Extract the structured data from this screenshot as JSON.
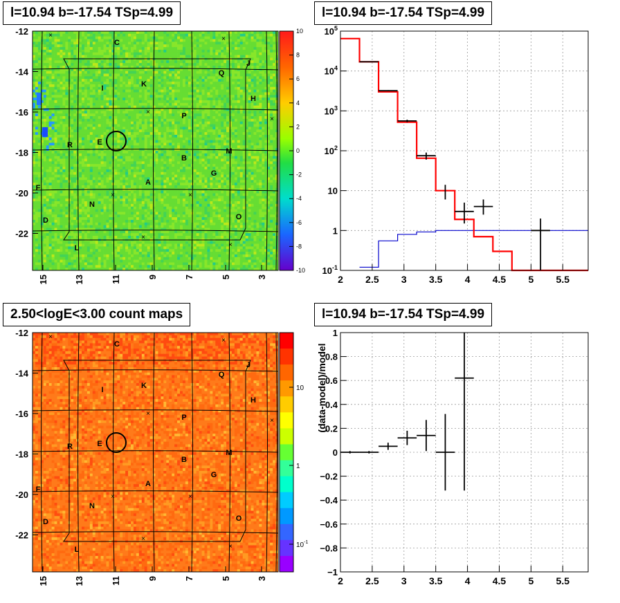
{
  "panels": {
    "top_left_title": "l=10.94 b=-17.54 TSp=4.99",
    "top_right_title": "l=10.94 b=-17.54 TSp=4.99",
    "bottom_left_title": "2.50<logE<3.00 count maps",
    "bottom_right_title": "l=10.94 b=-17.54 TSp=4.99"
  },
  "chart_data": [
    {
      "type": "heatmap",
      "name": "significance-map",
      "x_ticks": [
        "15",
        "13",
        "11",
        "9",
        "7",
        "5",
        "3"
      ],
      "y_ticks": [
        "-12",
        "-14",
        "-16",
        "-18",
        "-20",
        "-22"
      ],
      "colorbar_ticks": [
        "10",
        "8",
        "6",
        "4",
        "2",
        "0",
        "-2",
        "-4",
        "-6",
        "-8",
        "-10"
      ],
      "colorbar_range": [
        -10,
        10
      ],
      "source_labels": [
        "C",
        "J",
        "Q",
        "I",
        "K",
        "H",
        "P",
        "E",
        "R",
        "M",
        "B",
        "G",
        "A",
        "F",
        "N",
        "D",
        "O",
        "L"
      ],
      "source_circle": {
        "l": 10.94,
        "b": -17.54
      },
      "colors": {
        "dominant": "#66dd33"
      }
    },
    {
      "type": "line",
      "name": "spectrum",
      "x_ticks": [
        "2",
        "2.5",
        "3",
        "3.5",
        "4",
        "4.5",
        "5",
        "5.5"
      ],
      "xlim": [
        2.0,
        5.9
      ],
      "y_scale": "log",
      "ylim": [
        0.1,
        100000
      ],
      "y_ticks": [
        {
          "base": "10",
          "exp": "5",
          "value": 100000
        },
        {
          "base": "10",
          "exp": "4",
          "value": 10000
        },
        {
          "base": "10",
          "exp": "3",
          "value": 1000
        },
        {
          "base": "10",
          "exp": "2",
          "value": 100
        },
        {
          "base": "10",
          "exp": "",
          "value": 10
        },
        {
          "base": "1",
          "exp": "",
          "value": 1
        },
        {
          "base": "10",
          "exp": "-1",
          "value": 0.1
        }
      ],
      "model_total": {
        "color": "#ff0000",
        "bins": [
          [
            2.0,
            2.3,
            65000
          ],
          [
            2.3,
            2.6,
            17000
          ],
          [
            2.6,
            2.9,
            3000
          ],
          [
            2.9,
            3.2,
            520
          ],
          [
            3.2,
            3.5,
            65
          ],
          [
            3.5,
            3.8,
            10
          ],
          [
            3.8,
            4.1,
            1.9
          ],
          [
            4.1,
            4.4,
            0.7
          ],
          [
            4.4,
            4.7,
            0.3
          ],
          [
            4.7,
            5.0,
            0.1
          ],
          [
            5.0,
            5.9,
            0.1
          ]
        ]
      },
      "model_source": {
        "color": "#0000cc",
        "bins": [
          [
            2.3,
            2.6,
            0.12
          ],
          [
            2.6,
            2.9,
            0.55
          ],
          [
            2.9,
            3.2,
            0.8
          ],
          [
            3.2,
            3.5,
            0.92
          ],
          [
            3.5,
            3.8,
            1.0
          ],
          [
            3.8,
            5.9,
            1.0
          ]
        ]
      },
      "data_points": [
        {
          "x": 2.45,
          "xerr": 0.15,
          "y": 17000,
          "ylo": 16800,
          "yhi": 17200
        },
        {
          "x": 2.75,
          "xerr": 0.15,
          "y": 3200,
          "ylo": 3100,
          "yhi": 3300
        },
        {
          "x": 3.05,
          "xerr": 0.15,
          "y": 560,
          "ylo": 520,
          "yhi": 600
        },
        {
          "x": 3.35,
          "xerr": 0.15,
          "y": 75,
          "ylo": 60,
          "yhi": 90
        },
        {
          "x": 3.65,
          "xerr": 0.0,
          "y": 10,
          "ylo": 6,
          "yhi": 14
        },
        {
          "x": 3.95,
          "xerr": 0.15,
          "y": 3,
          "ylo": 1.5,
          "yhi": 5
        },
        {
          "x": 4.25,
          "xerr": 0.15,
          "y": 4,
          "ylo": 2.5,
          "yhi": 6
        },
        {
          "x": 5.15,
          "xerr": 0.15,
          "y": 1,
          "ylo": 0.1,
          "yhi": 2
        }
      ]
    },
    {
      "type": "heatmap",
      "name": "count-map",
      "x_ticks": [
        "15",
        "13",
        "11",
        "9",
        "7",
        "5",
        "3"
      ],
      "y_ticks": [
        "-12",
        "-14",
        "-16",
        "-18",
        "-20",
        "-22"
      ],
      "colorbar_scale": "log",
      "colorbar_ticks": [
        {
          "base": "10",
          "exp": "",
          "value": 10
        },
        {
          "base": "1",
          "exp": "",
          "value": 1
        },
        {
          "base": "10",
          "exp": "-1",
          "value": 0.1
        }
      ],
      "source_labels": [
        "C",
        "J",
        "Q",
        "I",
        "K",
        "H",
        "P",
        "E",
        "R",
        "M",
        "B",
        "G",
        "A",
        "F",
        "N",
        "D",
        "O",
        "L"
      ],
      "colors": {
        "dominant": "#ff6a1a"
      }
    },
    {
      "type": "scatter",
      "name": "residuals",
      "ylabel": "(data-model)/model",
      "x_ticks": [
        "2",
        "2.5",
        "3",
        "3.5",
        "4",
        "4.5",
        "5",
        "5.5"
      ],
      "y_ticks": [
        "1",
        "0.8",
        "0.6",
        "0.4",
        "0.2",
        "0",
        "−0.2",
        "−0.4",
        "−0.6",
        "−0.8",
        "−1"
      ],
      "xlim": [
        2.0,
        5.9
      ],
      "ylim": [
        -1,
        1
      ],
      "points": [
        {
          "x": 2.15,
          "xerr": 0.15,
          "y": 0.0,
          "err": 0.01
        },
        {
          "x": 2.45,
          "xerr": 0.15,
          "y": 0.0,
          "err": 0.01
        },
        {
          "x": 2.75,
          "xerr": 0.15,
          "y": 0.05,
          "err": 0.03
        },
        {
          "x": 3.05,
          "xerr": 0.15,
          "y": 0.12,
          "err": 0.06
        },
        {
          "x": 3.35,
          "xerr": 0.15,
          "y": 0.14,
          "err": 0.13
        },
        {
          "x": 3.65,
          "xerr": 0.15,
          "y": 0.0,
          "err": 0.32
        },
        {
          "x": 3.95,
          "xerr": 0.15,
          "y": 0.62,
          "err": 0.94
        }
      ]
    }
  ]
}
